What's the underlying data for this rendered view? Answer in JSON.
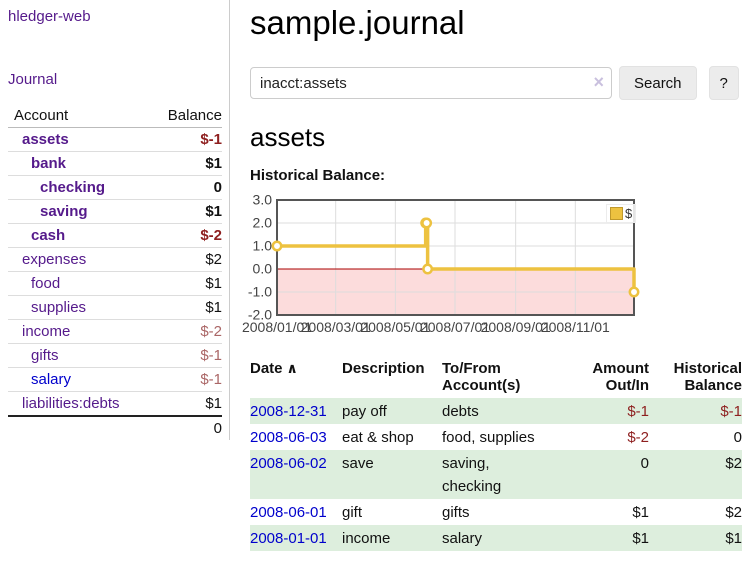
{
  "app": {
    "title": "hledger-web"
  },
  "sidebar": {
    "nav_journal": "Journal",
    "table": {
      "headers": {
        "account": "Account",
        "balance": "Balance"
      },
      "rows": [
        {
          "account": "assets",
          "depth": 1,
          "bold": true,
          "balance": "$-1",
          "balance_style": "neg"
        },
        {
          "account": "bank",
          "depth": 2,
          "bold": true,
          "balance": "$1",
          "balance_style": "pos"
        },
        {
          "account": "checking",
          "depth": 3,
          "bold": true,
          "balance": "0",
          "balance_style": "pos"
        },
        {
          "account": "saving",
          "depth": 3,
          "bold": true,
          "balance": "$1",
          "balance_style": "pos"
        },
        {
          "account": "cash",
          "depth": 2,
          "bold": true,
          "balance": "$-2",
          "balance_style": "neg"
        },
        {
          "account": "expenses",
          "depth": 1,
          "bold": false,
          "balance": "$2",
          "balance_style": "pos"
        },
        {
          "account": "food",
          "depth": 2,
          "bold": false,
          "balance": "$1",
          "balance_style": "pos"
        },
        {
          "account": "supplies",
          "depth": 2,
          "bold": false,
          "balance": "$1",
          "balance_style": "pos"
        },
        {
          "account": "income",
          "depth": 1,
          "bold": false,
          "balance": "$-2",
          "balance_style": "neg-soft"
        },
        {
          "account": "gifts",
          "depth": 2,
          "bold": false,
          "balance": "$-1",
          "balance_style": "neg-soft"
        },
        {
          "account": "salary",
          "depth": 2,
          "bold": false,
          "balance": "$-1",
          "balance_style": "neg-soft",
          "link_color": "blue"
        },
        {
          "account": "liabilities:debts",
          "depth": 1,
          "bold": false,
          "balance": "$1",
          "balance_style": "pos"
        }
      ],
      "total": "0"
    }
  },
  "header": {
    "title": "sample.journal"
  },
  "search": {
    "value": "inacct:assets",
    "clear_icon": "×",
    "button_label": "Search",
    "help_label": "?"
  },
  "account_page": {
    "heading": "assets",
    "chart_label": "Historical Balance:"
  },
  "chart_data": {
    "type": "line",
    "style": "step",
    "title": "Historical Balance:",
    "series": [
      {
        "name": "$",
        "color": "#edc240",
        "points": [
          [
            "2008-01-01",
            1
          ],
          [
            "2008-06-01",
            2
          ],
          [
            "2008-06-02",
            2
          ],
          [
            "2008-06-03",
            0
          ],
          [
            "2008-12-31",
            -1
          ]
        ]
      }
    ],
    "xlim": [
      "2008-01-01",
      "2008-12-31"
    ],
    "ylim": [
      -2,
      3
    ],
    "y_ticks": [
      {
        "value": 3,
        "label": "3.0"
      },
      {
        "value": 2,
        "label": "2.0"
      },
      {
        "value": 1,
        "label": "1.0"
      },
      {
        "value": 0,
        "label": "0.0"
      },
      {
        "value": -1,
        "label": "-1.0"
      },
      {
        "value": -2,
        "label": "-2.0"
      }
    ],
    "x_ticks": [
      {
        "date": "2008-01-01",
        "label": "2008/01/01"
      },
      {
        "date": "2008-03-01",
        "label": "2008/03/01"
      },
      {
        "date": "2008-05-01",
        "label": "2008/05/01"
      },
      {
        "date": "2008-07-01",
        "label": "2008/07/01"
      },
      {
        "date": "2008-09-01",
        "label": "2008/09/01"
      },
      {
        "date": "2008-11-01",
        "label": "2008/11/01"
      }
    ],
    "legend": {
      "label": "$",
      "position": "top-right"
    },
    "grid": true,
    "grid_color": "#dddddd",
    "border_color": "#555555",
    "negative_region_color": "#fcdcdc",
    "zero_line_color": "#aa0000",
    "marker_fill": "#ffffff",
    "tick_color": "#444444"
  },
  "transactions": {
    "headers": {
      "date": "Date",
      "sort_caret": "∧",
      "description": "Description",
      "tofrom": "To/From Account(s)",
      "amount": "Amount Out/In",
      "balance": "Historical Balance"
    },
    "rows": [
      {
        "date": "2008-12-31",
        "description": "pay off",
        "tofrom_lines": [
          "debts"
        ],
        "amount": "$-1",
        "amount_style": "neg",
        "balance": "$-1",
        "balance_style": "neg"
      },
      {
        "date": "2008-06-03",
        "description": "eat & shop",
        "tofrom_lines": [
          "food, supplies"
        ],
        "amount": "$-2",
        "amount_style": "neg",
        "balance": "0",
        "balance_style": "pos"
      },
      {
        "date": "2008-06-02",
        "description": "save",
        "tofrom_lines": [
          "saving,",
          "checking"
        ],
        "amount": "0",
        "amount_style": "pos",
        "balance": "$2",
        "balance_style": "pos"
      },
      {
        "date": "2008-06-01",
        "description": "gift",
        "tofrom_lines": [
          "gifts"
        ],
        "amount": "$1",
        "amount_style": "pos",
        "balance": "$2",
        "balance_style": "pos"
      },
      {
        "date": "2008-01-01",
        "description": "income",
        "tofrom_lines": [
          "salary"
        ],
        "amount": "$1",
        "amount_style": "pos",
        "balance": "$1",
        "balance_style": "pos"
      }
    ]
  },
  "colors": {
    "accent_purple": "#551a8b",
    "link_blue": "#0000cc",
    "negative": "#8e1f1f",
    "negative_soft": "#aa6666",
    "stripe_green": "#ddeedd",
    "chart_gold": "#edc240",
    "chart_negative_bg": "#fcdcdc",
    "chart_zero_line": "#aa0000"
  }
}
